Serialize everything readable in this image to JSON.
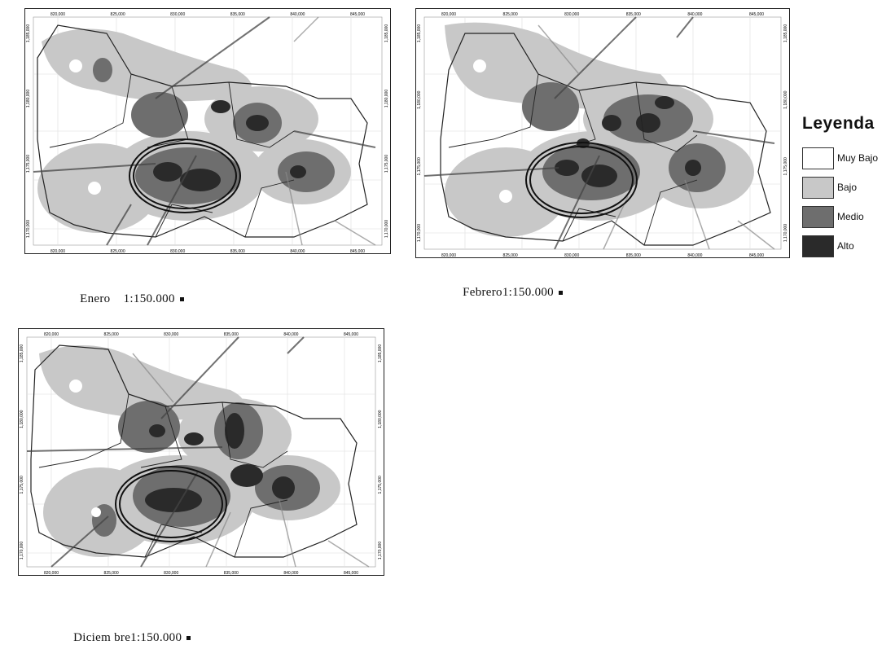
{
  "maps": [
    {
      "caption": "Enero    1:150.000"
    },
    {
      "caption": "Febrero1:150.000"
    },
    {
      "caption": "Diciem bre1:150.000"
    }
  ],
  "axis": {
    "x_ticks": [
      "820,000",
      "825,000",
      "830,000",
      "835,000",
      "840,000",
      "845,000"
    ],
    "y_ticks": [
      "1,185,000",
      "1,180,000",
      "1,175,000",
      "1,170,000"
    ]
  },
  "legend": {
    "title": "Leyenda",
    "items": [
      {
        "label": "Muy Bajo",
        "color": "#ffffff"
      },
      {
        "label": "Bajo",
        "color": "#c8c8c8"
      },
      {
        "label": "Medio",
        "color": "#6e6e6e"
      },
      {
        "label": "Alto",
        "color": "#2a2a2a"
      }
    ]
  }
}
